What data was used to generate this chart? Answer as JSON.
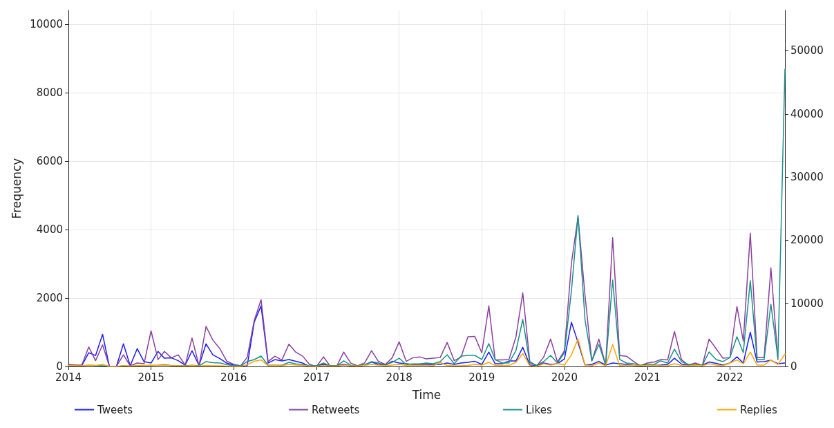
{
  "chart_data": {
    "type": "line",
    "xlabel": "Time",
    "ylabel": "Frequency",
    "x": [
      "2014-01",
      "2014-02",
      "2014-03",
      "2014-04",
      "2014-05",
      "2014-06",
      "2014-07",
      "2014-08",
      "2014-09",
      "2014-10",
      "2014-11",
      "2014-12",
      "2015-01",
      "2015-02",
      "2015-03",
      "2015-04",
      "2015-05",
      "2015-06",
      "2015-07",
      "2015-08",
      "2015-09",
      "2015-10",
      "2015-11",
      "2015-12",
      "2016-01",
      "2016-02",
      "2016-03",
      "2016-04",
      "2016-05",
      "2016-06",
      "2016-07",
      "2016-08",
      "2016-09",
      "2016-10",
      "2016-11",
      "2016-12",
      "2017-01",
      "2017-02",
      "2017-03",
      "2017-04",
      "2017-05",
      "2017-06",
      "2017-07",
      "2017-08",
      "2017-09",
      "2017-10",
      "2017-11",
      "2017-12",
      "2018-01",
      "2018-02",
      "2018-03",
      "2018-04",
      "2018-05",
      "2018-06",
      "2018-07",
      "2018-08",
      "2018-09",
      "2018-10",
      "2018-11",
      "2018-12",
      "2019-01",
      "2019-02",
      "2019-03",
      "2019-04",
      "2019-05",
      "2019-06",
      "2019-07",
      "2019-08",
      "2019-09",
      "2019-10",
      "2019-11",
      "2019-12",
      "2020-01",
      "2020-02",
      "2020-03",
      "2020-04",
      "2020-05",
      "2020-06",
      "2020-07",
      "2020-08",
      "2020-09",
      "2020-10",
      "2020-11",
      "2020-12",
      "2021-01",
      "2021-02",
      "2021-03",
      "2021-04",
      "2021-05",
      "2021-06",
      "2021-07",
      "2021-08",
      "2021-09",
      "2021-10",
      "2021-11",
      "2021-12",
      "2022-01",
      "2022-02",
      "2022-03",
      "2022-04",
      "2022-05",
      "2022-06",
      "2022-07",
      "2022-08",
      "2022-09"
    ],
    "series": [
      {
        "name": "Tweets",
        "color": "#1a1aff",
        "values": [
          40,
          30,
          20,
          400,
          320,
          940,
          0,
          0,
          660,
          20,
          520,
          140,
          100,
          440,
          240,
          250,
          170,
          40,
          460,
          30,
          660,
          340,
          230,
          100,
          40,
          20,
          30,
          1300,
          1770,
          100,
          200,
          160,
          200,
          150,
          100,
          0,
          20,
          60,
          20,
          20,
          60,
          20,
          20,
          40,
          130,
          60,
          40,
          150,
          100,
          80,
          60,
          60,
          60,
          60,
          60,
          100,
          60,
          100,
          120,
          150,
          60,
          420,
          80,
          80,
          160,
          160,
          560,
          40,
          20,
          100,
          60,
          80,
          220,
          1290,
          700,
          40,
          60,
          150,
          40,
          100,
          80,
          60,
          30,
          20,
          30,
          30,
          40,
          60,
          240,
          70,
          30,
          30,
          40,
          130,
          90,
          40,
          100,
          280,
          100,
          1000,
          130,
          140,
          180,
          80,
          100
        ]
      },
      {
        "name": "Retweets",
        "color": "#8a3f9e",
        "values": [
          60,
          40,
          40,
          570,
          170,
          630,
          0,
          0,
          340,
          20,
          100,
          80,
          1040,
          200,
          440,
          250,
          340,
          40,
          830,
          20,
          1170,
          770,
          520,
          160,
          60,
          20,
          270,
          1350,
          1950,
          140,
          300,
          190,
          650,
          420,
          300,
          60,
          0,
          280,
          20,
          20,
          420,
          100,
          20,
          100,
          460,
          150,
          60,
          250,
          720,
          150,
          250,
          280,
          220,
          240,
          260,
          700,
          170,
          270,
          870,
          880,
          400,
          1770,
          190,
          190,
          200,
          870,
          2150,
          140,
          20,
          270,
          800,
          130,
          460,
          3020,
          4370,
          2070,
          160,
          800,
          40,
          3760,
          320,
          300,
          150,
          20,
          100,
          130,
          200,
          190,
          1020,
          200,
          40,
          100,
          30,
          800,
          520,
          240,
          260,
          1750,
          740,
          3890,
          260,
          260,
          2880,
          200,
          null
        ]
      },
      {
        "name": "Likes",
        "color": "#16918c",
        "axis": "y2",
        "values": [
          100,
          100,
          100,
          200,
          150,
          100,
          0,
          0,
          100,
          50,
          100,
          150,
          150,
          200,
          300,
          150,
          100,
          100,
          200,
          100,
          770,
          600,
          550,
          300,
          100,
          100,
          770,
          1100,
          1640,
          200,
          200,
          200,
          650,
          400,
          300,
          100,
          100,
          550,
          100,
          100,
          880,
          200,
          100,
          250,
          770,
          550,
          250,
          650,
          1310,
          300,
          400,
          400,
          550,
          440,
          770,
          1860,
          440,
          1640,
          1750,
          1750,
          1100,
          3620,
          1100,
          550,
          550,
          2520,
          7450,
          550,
          200,
          770,
          1750,
          550,
          2190,
          12000,
          23900,
          7340,
          880,
          3510,
          220,
          13700,
          1100,
          550,
          440,
          200,
          330,
          330,
          880,
          550,
          2740,
          770,
          330,
          330,
          200,
          2300,
          1100,
          770,
          1420,
          4710,
          2190,
          13590,
          1100,
          1100,
          9860,
          1310,
          47100
        ]
      },
      {
        "name": "Replies",
        "color": "#ffa500",
        "values": [
          30,
          20,
          20,
          40,
          30,
          60,
          0,
          0,
          20,
          10,
          20,
          30,
          40,
          30,
          40,
          20,
          20,
          10,
          30,
          10,
          30,
          20,
          20,
          10,
          0,
          0,
          50,
          150,
          190,
          20,
          30,
          20,
          60,
          40,
          30,
          10,
          0,
          30,
          10,
          10,
          40,
          20,
          10,
          30,
          60,
          40,
          20,
          40,
          60,
          30,
          30,
          30,
          30,
          20,
          120,
          30,
          20,
          20,
          30,
          60,
          40,
          120,
          30,
          30,
          30,
          120,
          380,
          20,
          0,
          80,
          40,
          90,
          40,
          340,
          800,
          40,
          20,
          100,
          20,
          640,
          20,
          30,
          30,
          20,
          30,
          30,
          20,
          20,
          80,
          30,
          20,
          40,
          20,
          80,
          40,
          20,
          100,
          190,
          80,
          420,
          40,
          40,
          190,
          60,
          360
        ]
      }
    ],
    "xlim": [
      "2014-01",
      "2022-09"
    ],
    "xticks": [
      "2014",
      "2015",
      "2016",
      "2017",
      "2018",
      "2019",
      "2020",
      "2021",
      "2022"
    ],
    "ylim": [
      0,
      10400
    ],
    "yticks": [
      0,
      2000,
      4000,
      6000,
      8000,
      10000
    ],
    "y2lim": [
      0,
      56400
    ],
    "y2ticks": [
      0,
      10000,
      20000,
      30000,
      40000,
      50000
    ],
    "grid": true,
    "legend": "bottom",
    "marker": "none",
    "line_style": "solid"
  }
}
